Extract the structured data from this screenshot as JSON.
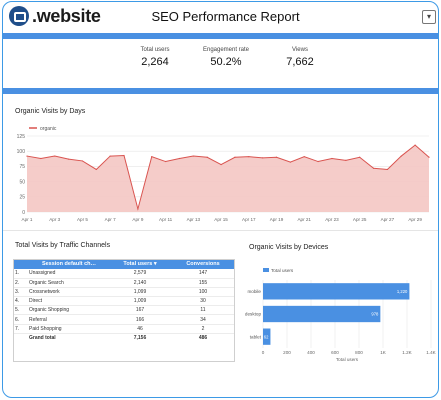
{
  "header": {
    "logo_text": ".website",
    "title": "SEO Performance Report",
    "menu_icon": "chevron-down-icon"
  },
  "kpis": [
    {
      "label": "Total users",
      "value": "2,264"
    },
    {
      "label": "Engagement rate",
      "value": "50.2%"
    },
    {
      "label": "Views",
      "value": "7,662"
    }
  ],
  "organic_section": {
    "title": "Organic Visits by Days"
  },
  "traffic_section": {
    "title": "Total Visits by Traffic Channels"
  },
  "devices_section": {
    "title": "Organic Visits by Devices"
  },
  "table": {
    "headers": [
      "Session default ch…",
      "Total users ▾",
      "Conversions"
    ],
    "rows": [
      {
        "idx": "1.",
        "name": "Unassigned",
        "users": "2,579",
        "conv": "147"
      },
      {
        "idx": "2.",
        "name": "Organic Search",
        "users": "2,140",
        "conv": "155"
      },
      {
        "idx": "3.",
        "name": "Crossnetwork",
        "users": "1,099",
        "conv": "100"
      },
      {
        "idx": "4.",
        "name": "Direct",
        "users": "1,009",
        "conv": "30"
      },
      {
        "idx": "5.",
        "name": "Organic Shopping",
        "users": "167",
        "conv": "11"
      },
      {
        "idx": "6.",
        "name": "Referral",
        "users": "166",
        "conv": "34"
      },
      {
        "idx": "7.",
        "name": "Paid Shopping",
        "users": "46",
        "conv": "2"
      }
    ],
    "total": {
      "label": "Grand total",
      "users": "7,156",
      "conv": "486"
    }
  },
  "colors": {
    "accent": "#4a90e2",
    "area_fill": "#f4c7c3",
    "area_line": "#d9534f",
    "bar": "#4a90e2"
  },
  "chart_data": [
    {
      "type": "area",
      "title": "Organic Visits by Days",
      "legend": "organic",
      "legend_placement": "top-left",
      "ylim": [
        0,
        125
      ],
      "yticks": [
        0,
        25,
        50,
        75,
        100,
        125
      ],
      "x_tick_labels": [
        "Apr 1",
        "Apr 3",
        "Apr 5",
        "Apr 7",
        "Apr 9",
        "Apr 11",
        "Apr 13",
        "Apr 15",
        "Apr 17",
        "Apr 19",
        "Apr 21",
        "Apr 23",
        "Apr 25",
        "Apr 27",
        "Apr 29"
      ],
      "x": [
        "Apr 1",
        "Apr 2",
        "Apr 3",
        "Apr 4",
        "Apr 5",
        "Apr 6",
        "Apr 7",
        "Apr 8",
        "Apr 9",
        "Apr 10",
        "Apr 11",
        "Apr 12",
        "Apr 13",
        "Apr 14",
        "Apr 15",
        "Apr 16",
        "Apr 17",
        "Apr 18",
        "Apr 19",
        "Apr 20",
        "Apr 21",
        "Apr 22",
        "Apr 23",
        "Apr 24",
        "Apr 25",
        "Apr 26",
        "Apr 27",
        "Apr 28",
        "Apr 29",
        "Apr 30"
      ],
      "values": [
        92,
        88,
        92,
        87,
        84,
        70,
        92,
        93,
        5,
        91,
        83,
        88,
        92,
        90,
        78,
        90,
        91,
        89,
        90,
        82,
        91,
        83,
        88,
        85,
        90,
        72,
        70,
        92,
        110,
        90
      ],
      "grid": true
    },
    {
      "type": "bar",
      "orientation": "horizontal",
      "title": "Organic Visits by Devices",
      "legend": "Total users",
      "legend_placement": "top-left",
      "categories": [
        "mobile",
        "desktop",
        "tablet"
      ],
      "values": [
        1220,
        978,
        62
      ],
      "value_labels": [
        "1,220",
        "978",
        "62"
      ],
      "xlim": [
        0,
        1400
      ],
      "xticks": [
        "0",
        "200",
        "400",
        "600",
        "800",
        "1K",
        "1.2K",
        "1.4K"
      ],
      "xlabel": "Total users",
      "grid": true
    }
  ]
}
